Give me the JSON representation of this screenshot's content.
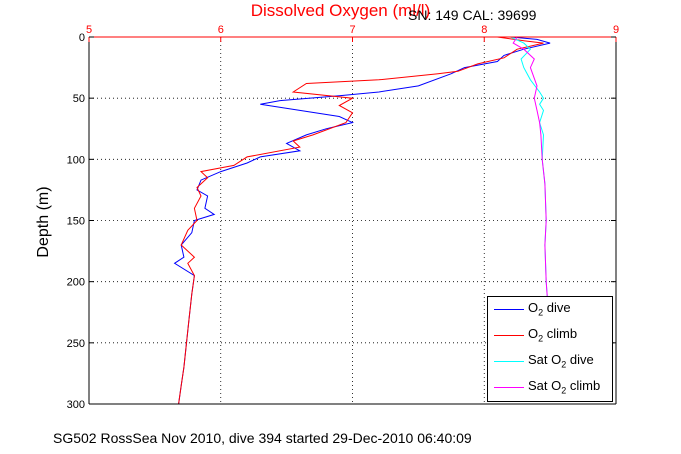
{
  "header": {
    "title": "Dissolved Oxygen (ml/l)",
    "serial": "SN: 149  CAL: 39699"
  },
  "footer": {
    "caption": "SG502 RossSea Nov 2010, dive 394 started 29-Dec-2010 06:40:09"
  },
  "colors": {
    "title": "#ff0000",
    "x_axis": "#ff0000",
    "y_axis": "#000000",
    "o2_dive": "#0000ff",
    "o2_climb": "#ff0000",
    "sat_dive": "#00ffff",
    "sat_climb": "#ff00ff"
  },
  "chart_data": {
    "type": "line",
    "title": "Dissolved Oxygen (ml/l)",
    "xlabel": "",
    "ylabel": "Depth (m)",
    "xlim": [
      5,
      9
    ],
    "ylim": [
      0,
      300
    ],
    "y_reversed": true,
    "x_axis_position": "top",
    "x_ticks": [
      "5",
      "6",
      "7",
      "8",
      "9"
    ],
    "y_ticks": [
      "0",
      "50",
      "100",
      "150",
      "200",
      "250",
      "300"
    ],
    "grid": true,
    "legend_position": "bottom-right",
    "legend": [
      "O2 dive",
      "O2 climb",
      "Sat O2 dive",
      "Sat O2 climb"
    ],
    "series": [
      {
        "name": "O2 dive",
        "color": "#0000ff",
        "points": [
          [
            8.2,
            0
          ],
          [
            8.4,
            2
          ],
          [
            8.5,
            5
          ],
          [
            8.3,
            10
          ],
          [
            8.15,
            15
          ],
          [
            8.1,
            20
          ],
          [
            7.85,
            25
          ],
          [
            7.75,
            30
          ],
          [
            7.5,
            40
          ],
          [
            7.2,
            45
          ],
          [
            6.9,
            48
          ],
          [
            6.45,
            52
          ],
          [
            6.3,
            55
          ],
          [
            6.6,
            60
          ],
          [
            6.9,
            65
          ],
          [
            7.0,
            70
          ],
          [
            6.8,
            75
          ],
          [
            6.65,
            80
          ],
          [
            6.5,
            87
          ],
          [
            6.6,
            93
          ],
          [
            6.3,
            98
          ],
          [
            6.2,
            103
          ],
          [
            6.0,
            110
          ],
          [
            5.85,
            117
          ],
          [
            5.82,
            125
          ],
          [
            5.9,
            130
          ],
          [
            5.88,
            140
          ],
          [
            5.95,
            145
          ],
          [
            5.8,
            150
          ],
          [
            5.78,
            160
          ],
          [
            5.7,
            170
          ],
          [
            5.72,
            180
          ],
          [
            5.65,
            185
          ],
          [
            5.8,
            195
          ],
          [
            5.78,
            210
          ],
          [
            5.76,
            230
          ],
          [
            5.74,
            250
          ],
          [
            5.72,
            270
          ],
          [
            5.7,
            285
          ],
          [
            5.68,
            300
          ]
        ]
      },
      {
        "name": "O2 climb",
        "color": "#ff0000",
        "points": [
          [
            8.1,
            0
          ],
          [
            8.3,
            3
          ],
          [
            8.45,
            5
          ],
          [
            8.25,
            10
          ],
          [
            8.15,
            17
          ],
          [
            7.95,
            22
          ],
          [
            7.8,
            28
          ],
          [
            7.65,
            30
          ],
          [
            7.2,
            35
          ],
          [
            6.65,
            38
          ],
          [
            6.55,
            45
          ],
          [
            7.0,
            50
          ],
          [
            6.9,
            56
          ],
          [
            7.0,
            62
          ],
          [
            6.95,
            70
          ],
          [
            6.7,
            80
          ],
          [
            6.55,
            85
          ],
          [
            6.6,
            90
          ],
          [
            6.2,
            98
          ],
          [
            6.1,
            105
          ],
          [
            5.85,
            110
          ],
          [
            5.9,
            115
          ],
          [
            5.82,
            123
          ],
          [
            5.85,
            130
          ],
          [
            5.8,
            140
          ],
          [
            5.82,
            150
          ],
          [
            5.75,
            158
          ],
          [
            5.7,
            170
          ],
          [
            5.8,
            180
          ],
          [
            5.75,
            185
          ],
          [
            5.8,
            195
          ],
          [
            5.78,
            210
          ],
          [
            5.76,
            230
          ],
          [
            5.74,
            250
          ],
          [
            5.72,
            270
          ],
          [
            5.7,
            285
          ],
          [
            5.68,
            300
          ]
        ]
      },
      {
        "name": "Sat O2 dive",
        "color": "#00ffff",
        "points": [
          [
            8.2,
            0
          ],
          [
            8.3,
            5
          ],
          [
            8.35,
            10
          ],
          [
            8.28,
            18
          ],
          [
            8.3,
            25
          ],
          [
            8.35,
            35
          ],
          [
            8.42,
            45
          ],
          [
            8.45,
            50
          ],
          [
            8.42,
            55
          ],
          [
            8.45,
            60
          ],
          [
            8.42,
            70
          ],
          [
            8.45,
            80
          ],
          [
            8.44,
            100
          ],
          [
            8.46,
            120
          ],
          [
            8.47,
            150
          ],
          [
            8.46,
            170
          ],
          [
            8.47,
            200
          ],
          [
            8.48,
            215
          ]
        ]
      },
      {
        "name": "Sat O2 climb",
        "color": "#ff00ff",
        "points": [
          [
            8.25,
            0
          ],
          [
            8.22,
            5
          ],
          [
            8.3,
            10
          ],
          [
            8.38,
            18
          ],
          [
            8.35,
            25
          ],
          [
            8.4,
            40
          ],
          [
            8.38,
            50
          ],
          [
            8.4,
            60
          ],
          [
            8.42,
            70
          ],
          [
            8.43,
            80
          ],
          [
            8.44,
            100
          ],
          [
            8.46,
            120
          ],
          [
            8.47,
            150
          ],
          [
            8.46,
            170
          ],
          [
            8.47,
            200
          ],
          [
            8.48,
            215
          ]
        ]
      }
    ]
  }
}
